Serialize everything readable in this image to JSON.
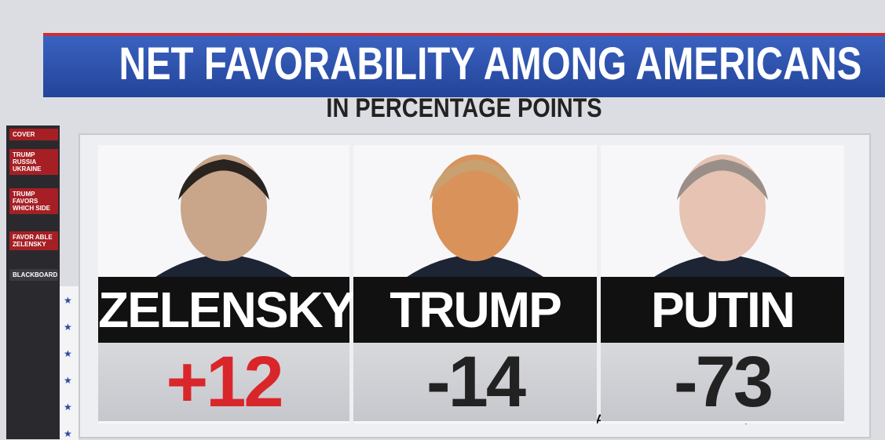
{
  "header": {
    "title": "NET FAVORABILITY AMONG AMERICANS",
    "subtitle": "IN PERCENTAGE POINTS"
  },
  "sidebar": [
    "COVER",
    "TRUMP RUSSIA UKRAINE",
    "TRUMP FAVORS WHICH SIDE",
    "FAVOR ABLE ZELENSKY",
    "BLACKBOARD"
  ],
  "panels": [
    {
      "name": "ZELENSKY",
      "value": "+12",
      "color": "#d9262a"
    },
    {
      "name": "TRUMP",
      "value": "-14",
      "color": "#222222"
    },
    {
      "name": "PUTIN",
      "value": "-73",
      "color": "#222222"
    }
  ],
  "source": "SOURCE: ENTEN'S AGGREGATE & YAHOO/YOUGOV"
}
